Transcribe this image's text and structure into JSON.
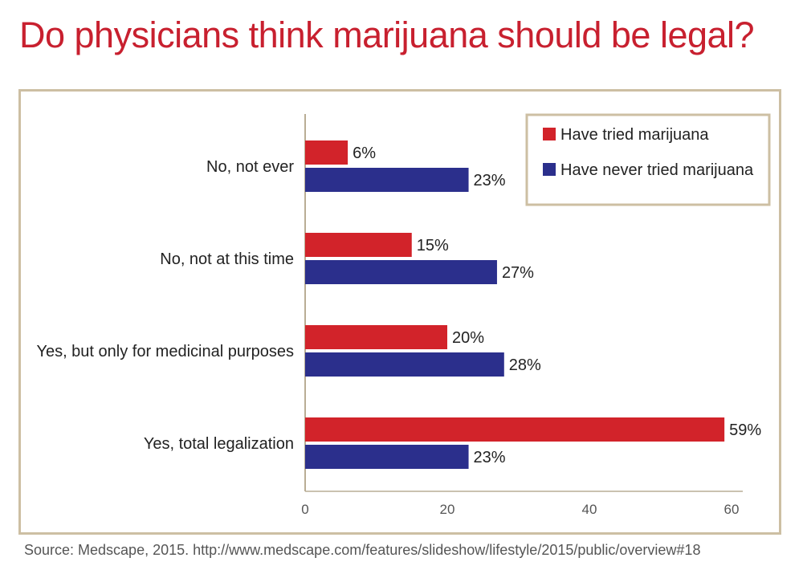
{
  "title": "Do physicians think marijuana should be legal?",
  "source": "Source: Medscape, 2015.  http://www.medscape.com/features/slideshow/lifestyle/2015/public/overview#18",
  "colors": {
    "title": "#c8202f",
    "tried": "#d2232a",
    "never": "#2b2f8c",
    "frame": "#cdbfa3",
    "axis": "#b9ad95"
  },
  "chart_data": {
    "type": "bar",
    "orientation": "horizontal",
    "categories": [
      "No, not ever",
      "No, not at this time",
      "Yes, but only for medicinal purposes",
      "Yes, total legalization"
    ],
    "series": [
      {
        "name": "Have tried marijuana",
        "values": [
          6,
          15,
          20,
          59
        ],
        "labels": [
          "6%",
          "15%",
          "20%",
          "59%"
        ],
        "color": "#d2232a"
      },
      {
        "name": "Have never tried marijuana",
        "values": [
          23,
          27,
          28,
          23
        ],
        "labels": [
          "23%",
          "27%",
          "28%",
          "23%"
        ],
        "color": "#2b2f8c"
      }
    ],
    "xlim": [
      0,
      60
    ],
    "xticks": [
      "0",
      "20",
      "40",
      "60"
    ],
    "legend": "top-right",
    "grid": false
  }
}
